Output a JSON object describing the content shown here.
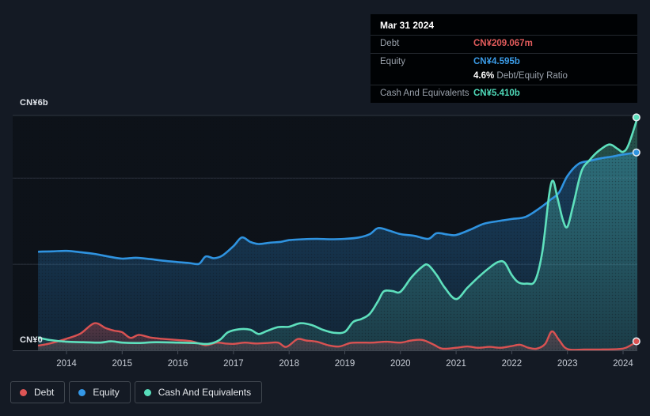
{
  "tooltip": {
    "date": "Mar 31 2024",
    "rows": [
      {
        "label": "Debt",
        "value": "CN¥209.067m"
      },
      {
        "label": "Equity",
        "value": "CN¥4.595b",
        "ratio_value": "4.6%",
        "ratio_label": "Debt/Equity Ratio"
      },
      {
        "label": "Cash And Equivalents",
        "value": "CN¥5.410b"
      }
    ]
  },
  "axis": {
    "y_max_label": "CN¥6b",
    "y_zero_label": "CN¥0",
    "x_labels": [
      "2014",
      "2015",
      "2016",
      "2017",
      "2018",
      "2019",
      "2020",
      "2021",
      "2022",
      "2023",
      "2024"
    ]
  },
  "legend": [
    {
      "label": "Debt",
      "color": "#dd5555"
    },
    {
      "label": "Equity",
      "color": "#3498e8"
    },
    {
      "label": "Cash And Equivalents",
      "color": "#57ddbb"
    }
  ],
  "colors": {
    "debt": "#e25c5c",
    "equity": "#3b9ce8",
    "cash": "#4fd9b9",
    "label_gray": "#99a1ab",
    "background": "#141a24",
    "plot_background": "#0d1219",
    "gridline": "#343c48",
    "baseline": "#3f4651",
    "tick_text": "#c8cdd6"
  },
  "chart_data": {
    "type": "area",
    "title": "Debt to Equity History",
    "x_unit": "decimal_year",
    "y_unit": "CN¥ billions",
    "x_range": [
      2013.49,
      2024.26
    ],
    "y_range": [
      0,
      6
    ],
    "gridline_values": [
      2,
      4
    ],
    "legend_position": "bottom-left",
    "series": [
      {
        "name": "Equity",
        "color": "#2f93e0",
        "points": [
          [
            2013.49,
            2.29
          ],
          [
            2013.75,
            2.3
          ],
          [
            2014.0,
            2.31
          ],
          [
            2014.25,
            2.28
          ],
          [
            2014.5,
            2.24
          ],
          [
            2014.75,
            2.18
          ],
          [
            2015.0,
            2.13
          ],
          [
            2015.25,
            2.15
          ],
          [
            2015.5,
            2.12
          ],
          [
            2015.75,
            2.08
          ],
          [
            2016.0,
            2.05
          ],
          [
            2016.2,
            2.03
          ],
          [
            2016.38,
            2.01
          ],
          [
            2016.5,
            2.18
          ],
          [
            2016.65,
            2.14
          ],
          [
            2016.8,
            2.2
          ],
          [
            2017.0,
            2.42
          ],
          [
            2017.15,
            2.62
          ],
          [
            2017.3,
            2.52
          ],
          [
            2017.45,
            2.47
          ],
          [
            2017.65,
            2.5
          ],
          [
            2017.85,
            2.52
          ],
          [
            2018.0,
            2.56
          ],
          [
            2018.25,
            2.58
          ],
          [
            2018.5,
            2.59
          ],
          [
            2018.75,
            2.58
          ],
          [
            2019.0,
            2.59
          ],
          [
            2019.25,
            2.62
          ],
          [
            2019.45,
            2.7
          ],
          [
            2019.6,
            2.84
          ],
          [
            2019.8,
            2.78
          ],
          [
            2020.0,
            2.7
          ],
          [
            2020.25,
            2.66
          ],
          [
            2020.5,
            2.59
          ],
          [
            2020.65,
            2.72
          ],
          [
            2020.85,
            2.69
          ],
          [
            2021.0,
            2.68
          ],
          [
            2021.25,
            2.8
          ],
          [
            2021.5,
            2.94
          ],
          [
            2021.75,
            3.0
          ],
          [
            2022.0,
            3.05
          ],
          [
            2022.25,
            3.1
          ],
          [
            2022.5,
            3.3
          ],
          [
            2022.7,
            3.5
          ],
          [
            2022.85,
            3.67
          ],
          [
            2023.0,
            4.05
          ],
          [
            2023.2,
            4.33
          ],
          [
            2023.4,
            4.4
          ],
          [
            2023.6,
            4.46
          ],
          [
            2023.8,
            4.5
          ],
          [
            2024.0,
            4.55
          ],
          [
            2024.26,
            4.595
          ]
        ]
      },
      {
        "name": "Debt",
        "color": "#d95252",
        "points": [
          [
            2013.49,
            0.11
          ],
          [
            2013.7,
            0.16
          ],
          [
            2014.0,
            0.27
          ],
          [
            2014.25,
            0.39
          ],
          [
            2014.5,
            0.63
          ],
          [
            2014.7,
            0.52
          ],
          [
            2014.85,
            0.46
          ],
          [
            2015.0,
            0.42
          ],
          [
            2015.15,
            0.29
          ],
          [
            2015.3,
            0.36
          ],
          [
            2015.5,
            0.3
          ],
          [
            2015.7,
            0.27
          ],
          [
            2016.0,
            0.24
          ],
          [
            2016.25,
            0.21
          ],
          [
            2016.5,
            0.12
          ],
          [
            2016.7,
            0.18
          ],
          [
            2016.85,
            0.16
          ],
          [
            2017.0,
            0.15
          ],
          [
            2017.2,
            0.18
          ],
          [
            2017.4,
            0.16
          ],
          [
            2017.6,
            0.17
          ],
          [
            2017.8,
            0.18
          ],
          [
            2017.95,
            0.08
          ],
          [
            2018.15,
            0.26
          ],
          [
            2018.3,
            0.23
          ],
          [
            2018.5,
            0.2
          ],
          [
            2018.7,
            0.12
          ],
          [
            2018.9,
            0.09
          ],
          [
            2019.1,
            0.17
          ],
          [
            2019.3,
            0.18
          ],
          [
            2019.5,
            0.18
          ],
          [
            2019.75,
            0.2
          ],
          [
            2020.0,
            0.18
          ],
          [
            2020.2,
            0.23
          ],
          [
            2020.4,
            0.24
          ],
          [
            2020.6,
            0.13
          ],
          [
            2020.75,
            0.04
          ],
          [
            2021.0,
            0.06
          ],
          [
            2021.2,
            0.09
          ],
          [
            2021.4,
            0.06
          ],
          [
            2021.6,
            0.08
          ],
          [
            2021.8,
            0.06
          ],
          [
            2022.0,
            0.1
          ],
          [
            2022.15,
            0.13
          ],
          [
            2022.3,
            0.06
          ],
          [
            2022.45,
            0.04
          ],
          [
            2022.6,
            0.15
          ],
          [
            2022.72,
            0.44
          ],
          [
            2022.85,
            0.24
          ],
          [
            2023.0,
            0.03
          ],
          [
            2023.3,
            0.02
          ],
          [
            2023.6,
            0.02
          ],
          [
            2023.9,
            0.03
          ],
          [
            2024.05,
            0.06
          ],
          [
            2024.26,
            0.209
          ]
        ]
      },
      {
        "name": "Cash And Equivalents",
        "color": "#5ee0bd",
        "points": [
          [
            2013.49,
            0.3
          ],
          [
            2013.7,
            0.24
          ],
          [
            2014.0,
            0.2
          ],
          [
            2014.3,
            0.19
          ],
          [
            2014.6,
            0.18
          ],
          [
            2014.8,
            0.21
          ],
          [
            2015.0,
            0.18
          ],
          [
            2015.3,
            0.17
          ],
          [
            2015.6,
            0.19
          ],
          [
            2016.0,
            0.18
          ],
          [
            2016.3,
            0.17
          ],
          [
            2016.55,
            0.15
          ],
          [
            2016.75,
            0.24
          ],
          [
            2016.9,
            0.42
          ],
          [
            2017.1,
            0.49
          ],
          [
            2017.3,
            0.48
          ],
          [
            2017.45,
            0.38
          ],
          [
            2017.6,
            0.45
          ],
          [
            2017.8,
            0.54
          ],
          [
            2018.0,
            0.55
          ],
          [
            2018.2,
            0.63
          ],
          [
            2018.4,
            0.59
          ],
          [
            2018.6,
            0.48
          ],
          [
            2018.8,
            0.41
          ],
          [
            2019.0,
            0.43
          ],
          [
            2019.15,
            0.66
          ],
          [
            2019.3,
            0.73
          ],
          [
            2019.45,
            0.85
          ],
          [
            2019.6,
            1.15
          ],
          [
            2019.7,
            1.37
          ],
          [
            2019.85,
            1.38
          ],
          [
            2020.0,
            1.36
          ],
          [
            2020.2,
            1.7
          ],
          [
            2020.4,
            1.95
          ],
          [
            2020.5,
            1.98
          ],
          [
            2020.65,
            1.75
          ],
          [
            2020.8,
            1.45
          ],
          [
            2021.0,
            1.19
          ],
          [
            2021.2,
            1.45
          ],
          [
            2021.4,
            1.7
          ],
          [
            2021.6,
            1.92
          ],
          [
            2021.75,
            2.05
          ],
          [
            2021.87,
            2.04
          ],
          [
            2022.0,
            1.75
          ],
          [
            2022.12,
            1.58
          ],
          [
            2022.27,
            1.55
          ],
          [
            2022.42,
            1.62
          ],
          [
            2022.55,
            2.3
          ],
          [
            2022.67,
            3.6
          ],
          [
            2022.74,
            3.94
          ],
          [
            2022.82,
            3.55
          ],
          [
            2022.92,
            3.02
          ],
          [
            2023.0,
            2.87
          ],
          [
            2023.1,
            3.35
          ],
          [
            2023.25,
            4.15
          ],
          [
            2023.4,
            4.42
          ],
          [
            2023.55,
            4.62
          ],
          [
            2023.75,
            4.78
          ],
          [
            2023.9,
            4.68
          ],
          [
            2024.0,
            4.61
          ],
          [
            2024.1,
            4.78
          ],
          [
            2024.26,
            5.41
          ]
        ]
      }
    ]
  }
}
